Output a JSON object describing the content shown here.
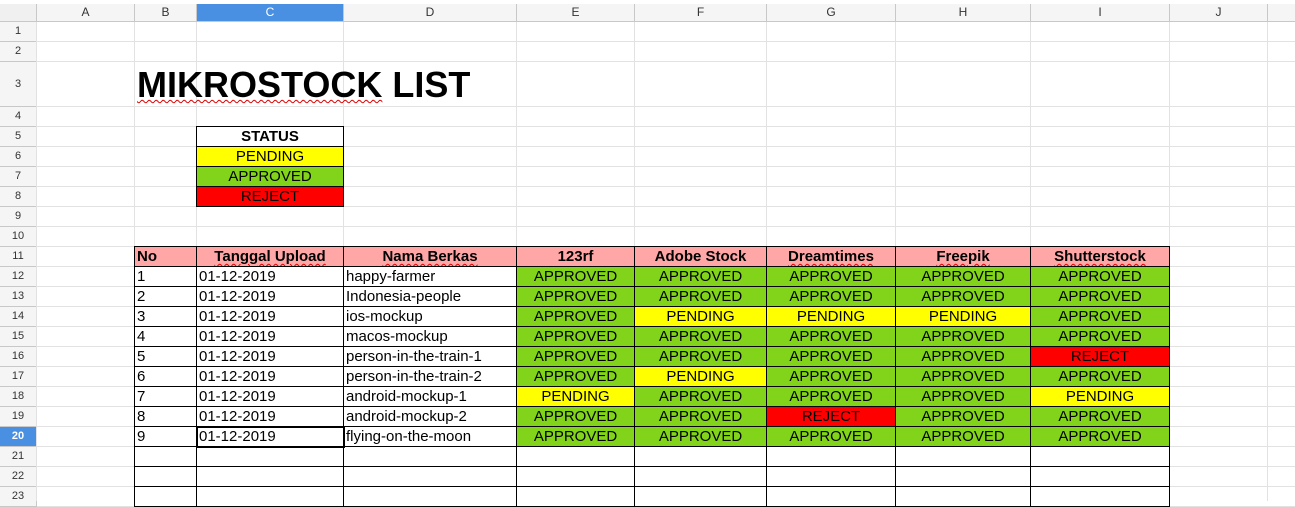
{
  "columns": [
    "A",
    "B",
    "C",
    "D",
    "E",
    "F",
    "G",
    "H",
    "I",
    "J"
  ],
  "rows": [
    "1",
    "2",
    "3",
    "4",
    "5",
    "6",
    "7",
    "8",
    "9",
    "10",
    "11",
    "12",
    "13",
    "14",
    "15",
    "16",
    "17",
    "18",
    "19",
    "20",
    "21",
    "22",
    "23"
  ],
  "title": "MIKROSTOCK LIST",
  "legend": {
    "header": "STATUS",
    "items": [
      {
        "label": "PENDING",
        "color": "#ffff00"
      },
      {
        "label": "APPROVED",
        "color": "#81d41a"
      },
      {
        "label": "REJECT",
        "color": "#ff0000"
      }
    ]
  },
  "table": {
    "headers": [
      "No",
      "Tanggal Upload",
      "Nama Berkas",
      "123rf",
      "Adobe Stock",
      "Dreamtimes",
      "Freepik",
      "Shutterstock"
    ],
    "rows": [
      {
        "no": "1",
        "date": "01-12-2019",
        "name": "happy-farmer",
        "s": [
          "APPROVED",
          "APPROVED",
          "APPROVED",
          "APPROVED",
          "APPROVED"
        ]
      },
      {
        "no": "2",
        "date": "01-12-2019",
        "name": "Indonesia-people",
        "s": [
          "APPROVED",
          "APPROVED",
          "APPROVED",
          "APPROVED",
          "APPROVED"
        ]
      },
      {
        "no": "3",
        "date": "01-12-2019",
        "name": "ios-mockup",
        "s": [
          "APPROVED",
          "PENDING",
          "PENDING",
          "PENDING",
          "APPROVED"
        ]
      },
      {
        "no": "4",
        "date": "01-12-2019",
        "name": "macos-mockup",
        "s": [
          "APPROVED",
          "APPROVED",
          "APPROVED",
          "APPROVED",
          "APPROVED"
        ]
      },
      {
        "no": "5",
        "date": "01-12-2019",
        "name": "person-in-the-train-1",
        "s": [
          "APPROVED",
          "APPROVED",
          "APPROVED",
          "APPROVED",
          "REJECT"
        ]
      },
      {
        "no": "6",
        "date": "01-12-2019",
        "name": "person-in-the-train-2",
        "s": [
          "APPROVED",
          "PENDING",
          "APPROVED",
          "APPROVED",
          "APPROVED"
        ]
      },
      {
        "no": "7",
        "date": "01-12-2019",
        "name": "android-mockup-1",
        "s": [
          "PENDING",
          "APPROVED",
          "APPROVED",
          "APPROVED",
          "PENDING"
        ]
      },
      {
        "no": "8",
        "date": "01-12-2019",
        "name": "android-mockup-2",
        "s": [
          "APPROVED",
          "APPROVED",
          "REJECT",
          "APPROVED",
          "APPROVED"
        ]
      },
      {
        "no": "9",
        "date": "01-12-2019",
        "name": "flying-on-the-moon",
        "s": [
          "APPROVED",
          "APPROVED",
          "APPROVED",
          "APPROVED",
          "APPROVED"
        ]
      }
    ]
  },
  "selection": {
    "column": "C",
    "row": "20"
  }
}
